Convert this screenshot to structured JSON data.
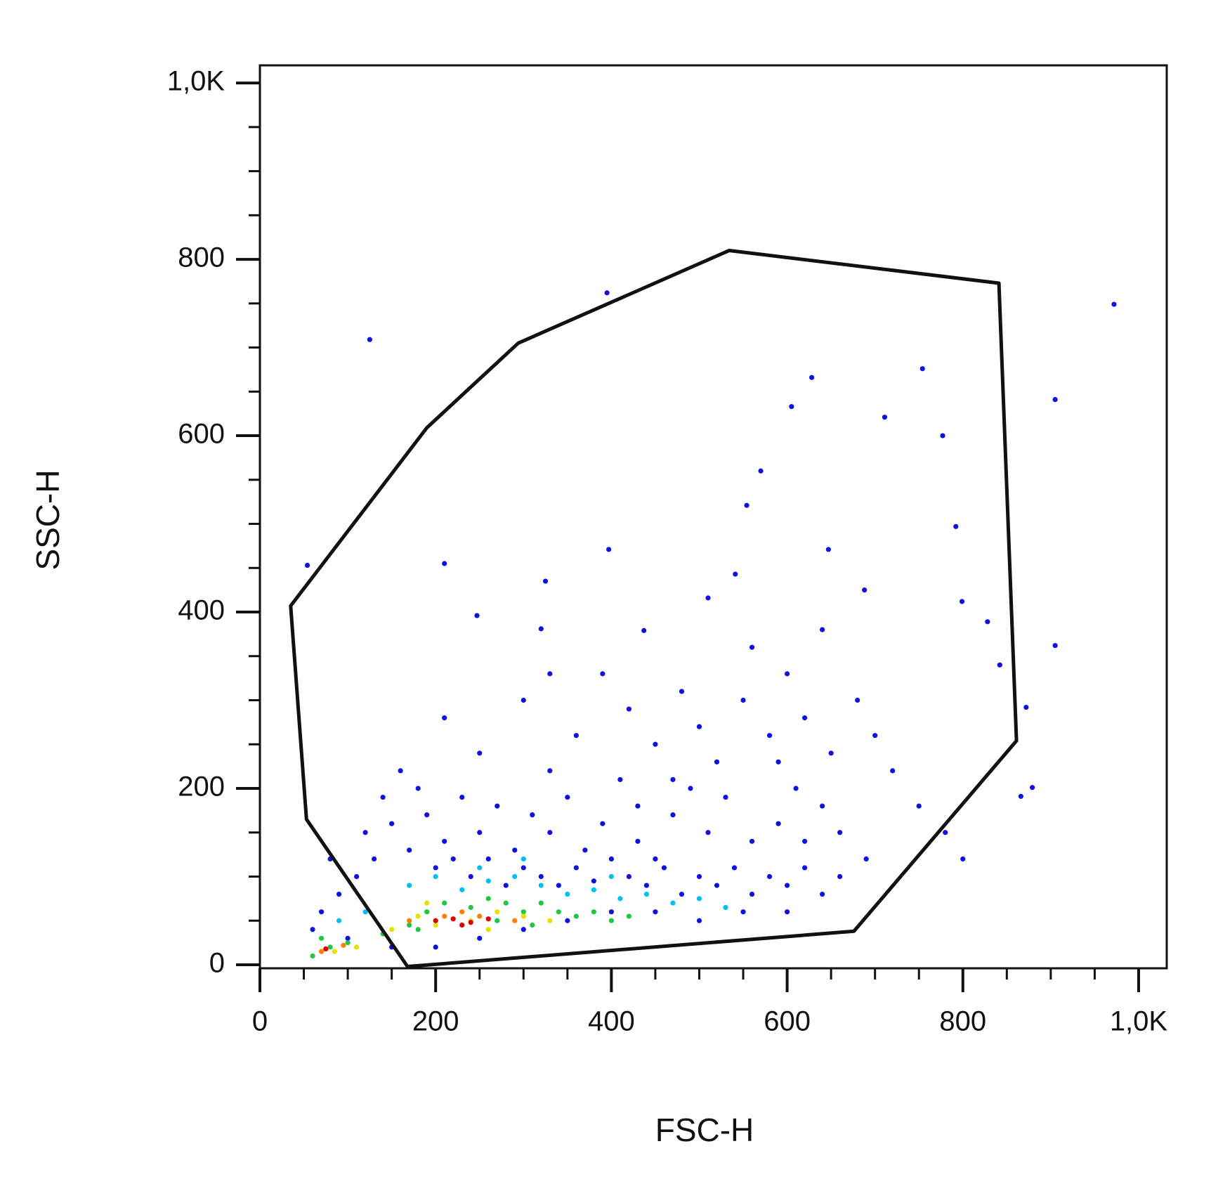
{
  "chart_data": {
    "type": "scatter",
    "x_label": "FSC-H",
    "y_label": "SSC-H",
    "xlim": [
      0,
      1032
    ],
    "ylim": [
      -4,
      1020
    ],
    "xticks": [
      0,
      200,
      400,
      600,
      800,
      {
        "value": 1000,
        "label": "1,0K"
      }
    ],
    "yticks": [
      0,
      200,
      400,
      600,
      800,
      {
        "value": 1000,
        "label": "1,0K"
      }
    ],
    "xminorticks": [
      50,
      100,
      150,
      250,
      300,
      350,
      450,
      500,
      550,
      650,
      700,
      750,
      850,
      900,
      950
    ],
    "yminorticks": [
      50,
      100,
      150,
      250,
      300,
      350,
      450,
      500,
      550,
      650,
      700,
      750,
      850,
      900,
      950
    ],
    "gate": {
      "color": "#111111",
      "x": [
        35,
        53,
        168,
        676,
        861,
        841,
        534,
        294,
        190
      ],
      "y": [
        407,
        165,
        -2,
        38,
        254,
        773,
        810,
        705,
        609
      ]
    },
    "series": [
      {
        "color": "#1010e0",
        "x": [
          395,
          125,
          972,
          754,
          628,
          605,
          711,
          905,
          777,
          570,
          554,
          792,
          397,
          210,
          54,
          647,
          541,
          325,
          799,
          688,
          510,
          247,
          828,
          905,
          320,
          437,
          842,
          872,
          879,
          866,
          210,
          250,
          300,
          330,
          360,
          390,
          420,
          450,
          480,
          500,
          520,
          550,
          580,
          600,
          620,
          650,
          680,
          700,
          720,
          750,
          780,
          800,
          690,
          660,
          640,
          610,
          590,
          560,
          530,
          510,
          490,
          470,
          450,
          430,
          410,
          390,
          370,
          350,
          330,
          310,
          290,
          270,
          250,
          230,
          210,
          190,
          170,
          150,
          130,
          110,
          90,
          80,
          70,
          120,
          140,
          160,
          180,
          200,
          220,
          240,
          260,
          280,
          300,
          320,
          340,
          360,
          380,
          400,
          420,
          440,
          460,
          480,
          500,
          520,
          540,
          560,
          580,
          600,
          620,
          640,
          660,
          550,
          600,
          450,
          500,
          400,
          350,
          300,
          250,
          200,
          150,
          100,
          60,
          620,
          470,
          430,
          330,
          560,
          640,
          590
        ],
        "y": [
          762,
          709,
          749,
          676,
          666,
          633,
          621,
          641,
          600,
          560,
          521,
          497,
          471,
          455,
          453,
          471,
          443,
          435,
          412,
          425,
          416,
          396,
          389,
          362,
          381,
          379,
          340,
          292,
          201,
          191,
          280,
          240,
          300,
          220,
          260,
          330,
          290,
          250,
          310,
          270,
          230,
          300,
          260,
          330,
          280,
          240,
          300,
          260,
          220,
          180,
          150,
          120,
          120,
          150,
          180,
          200,
          160,
          140,
          190,
          150,
          200,
          170,
          120,
          180,
          210,
          160,
          130,
          190,
          150,
          170,
          130,
          180,
          150,
          190,
          140,
          170,
          130,
          160,
          120,
          100,
          80,
          120,
          60,
          150,
          190,
          220,
          200,
          110,
          120,
          100,
          120,
          90,
          110,
          100,
          90,
          110,
          95,
          120,
          100,
          90,
          110,
          80,
          100,
          90,
          110,
          80,
          100,
          90,
          110,
          80,
          100,
          60,
          60,
          60,
          50,
          60,
          50,
          40,
          30,
          20,
          20,
          30,
          40,
          140,
          210,
          140,
          330,
          360,
          380,
          230
        ]
      },
      {
        "color": "#00c0f0",
        "x": [
          170,
          200,
          230,
          260,
          290,
          320,
          350,
          380,
          410,
          440,
          470,
          500,
          530,
          120,
          90,
          300,
          250,
          400
        ],
        "y": [
          90,
          100,
          85,
          95,
          100,
          90,
          80,
          85,
          75,
          80,
          70,
          75,
          65,
          60,
          50,
          120,
          110,
          100
        ]
      },
      {
        "color": "#20c840",
        "x": [
          80,
          100,
          140,
          170,
          190,
          210,
          240,
          260,
          280,
          300,
          320,
          340,
          360,
          380,
          400,
          420,
          180,
          230,
          270,
          310,
          60,
          70
        ],
        "y": [
          20,
          25,
          35,
          45,
          60,
          70,
          65,
          75,
          70,
          60,
          70,
          60,
          55,
          60,
          50,
          55,
          40,
          45,
          50,
          45,
          10,
          30
        ]
      },
      {
        "color": "#e8e000",
        "x": [
          110,
          150,
          180,
          200,
          240,
          270,
          300,
          330,
          190,
          260,
          85
        ],
        "y": [
          20,
          40,
          55,
          45,
          50,
          60,
          55,
          50,
          70,
          40,
          15
        ]
      },
      {
        "color": "#ff8000",
        "x": [
          70,
          95,
          170,
          210,
          250,
          290,
          230
        ],
        "y": [
          15,
          22,
          50,
          55,
          55,
          50,
          60
        ]
      },
      {
        "color": "#e00000",
        "x": [
          200,
          220,
          240,
          260,
          230,
          75
        ],
        "y": [
          50,
          52,
          48,
          52,
          45,
          18
        ]
      }
    ]
  }
}
